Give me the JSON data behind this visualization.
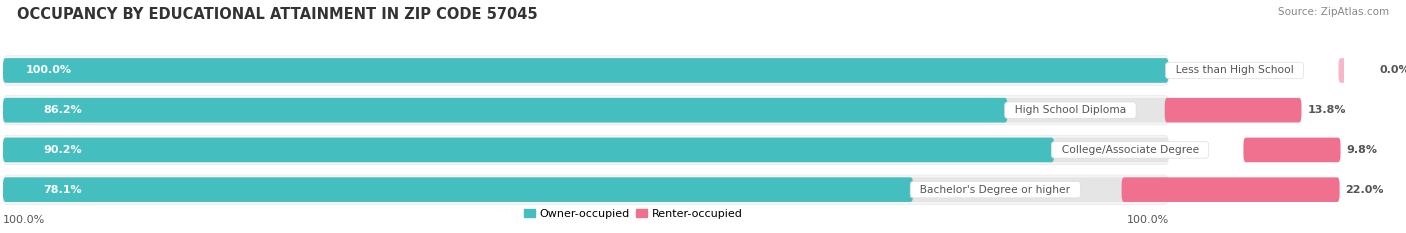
{
  "title": "OCCUPANCY BY EDUCATIONAL ATTAINMENT IN ZIP CODE 57045",
  "source": "Source: ZipAtlas.com",
  "categories": [
    "Less than High School",
    "High School Diploma",
    "College/Associate Degree",
    "Bachelor's Degree or higher"
  ],
  "owner_values": [
    100.0,
    86.2,
    90.2,
    78.1
  ],
  "renter_values": [
    0.0,
    13.8,
    9.8,
    22.0
  ],
  "owner_color": "#45BEC0",
  "renter_color": "#F07090",
  "owner_label": "Owner-occupied",
  "renter_label": "Renter-occupied",
  "bar_bg_color": "#e5e5e5",
  "bar_height": 0.62,
  "row_bg_color": "#f5f5f5",
  "title_fontsize": 10.5,
  "label_fontsize": 8.0,
  "value_fontsize": 8.0,
  "tick_fontsize": 8.0,
  "source_fontsize": 7.5,
  "axis_label_left": "100.0%",
  "axis_label_right": "100.0%",
  "owner_text_color": "#ffffff",
  "renter_text_color": "#555555",
  "category_text_color": "#555555",
  "background_color": "#ffffff",
  "total_bar_width": 100.0,
  "x_min": 0.0,
  "x_max": 115.0
}
